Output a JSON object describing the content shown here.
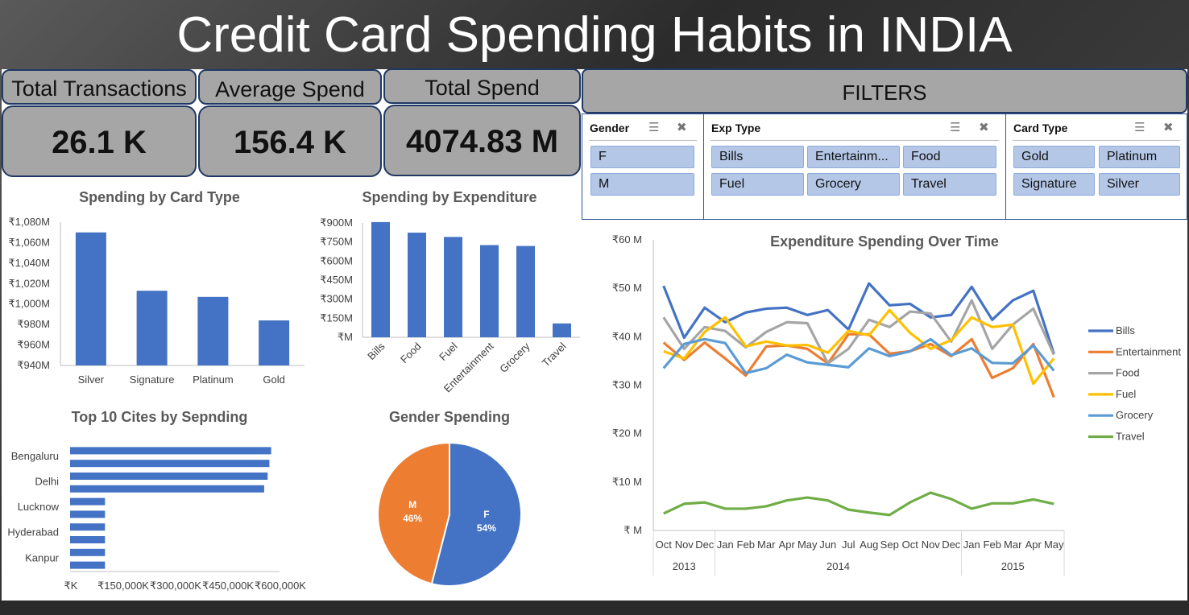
{
  "title": "Credit Card Spending Habits in INDIA",
  "kpis": [
    {
      "label": "Total Transactions",
      "value": "26.1 K"
    },
    {
      "label": "Average Spend",
      "value": "156.4 K"
    },
    {
      "label": "Total Spend",
      "value": "4074.83 M"
    }
  ],
  "filters": {
    "title": "FILTERS",
    "gender": {
      "label": "Gender",
      "options": [
        "F",
        "M"
      ]
    },
    "exp_type": {
      "label": "Exp Type",
      "options": [
        "Bills",
        "Entertainm...",
        "Food",
        "Fuel",
        "Grocery",
        "Travel"
      ]
    },
    "card_type": {
      "label": "Card Type",
      "options": [
        "Gold",
        "Platinum",
        "Signature",
        "Silver"
      ]
    }
  },
  "colors": {
    "primary": "#4472c4",
    "orange": "#ed7d31",
    "gray": "#a5a5a5",
    "yellow": "#ffc000",
    "lightblue": "#5b9bd5",
    "green": "#70ad47"
  },
  "chart_data": [
    {
      "type": "bar",
      "title": "Spending by Card Type",
      "categories": [
        "Silver",
        "Signature",
        "Platinum",
        "Gold"
      ],
      "values": [
        1070,
        1013,
        1007,
        984
      ],
      "ylim": [
        940,
        1080
      ],
      "yticks": [
        940,
        960,
        980,
        1000,
        1020,
        1040,
        1060,
        1080
      ],
      "ytick_labels": [
        "₹940M",
        "₹960M",
        "₹980M",
        "₹1,000M",
        "₹1,020M",
        "₹1,040M",
        "₹1,060M",
        "₹1,080M"
      ]
    },
    {
      "type": "bar",
      "title": "Spending by Expenditure",
      "categories": [
        "Bills",
        "Food",
        "Fuel",
        "Entertainment",
        "Grocery",
        "Travel"
      ],
      "values": [
        907,
        824,
        790,
        726,
        719,
        109
      ],
      "ylim": [
        0,
        900
      ],
      "yticks": [
        0,
        150,
        300,
        450,
        600,
        750,
        900
      ],
      "ytick_labels": [
        "₹M",
        "₹150M",
        "₹300M",
        "₹450M",
        "₹600M",
        "₹750M",
        "₹900M"
      ]
    },
    {
      "type": "bar",
      "orientation": "horizontal",
      "title": "Top 10 Cites by Sepnding",
      "categories": [
        "Bengaluru",
        "",
        "Delhi",
        "",
        "Lucknow",
        "",
        "Hyderabad",
        "",
        "Kanpur",
        ""
      ],
      "values": [
        576000,
        571000,
        566000,
        556000,
        100000,
        100000,
        100000,
        100000,
        100000,
        100000
      ],
      "xlim": [
        0,
        600000
      ],
      "xticks": [
        0,
        150000,
        300000,
        450000,
        600000
      ],
      "xtick_labels": [
        "₹K",
        "₹150,000K",
        "₹300,000K",
        "₹450,000K",
        "₹600,000K"
      ]
    },
    {
      "type": "pie",
      "title": "Gender Spending",
      "labels": [
        "F",
        "M"
      ],
      "values": [
        54,
        46
      ],
      "value_labels": [
        "54%",
        "46%"
      ]
    },
    {
      "type": "line",
      "title": "Expenditure Spending Over Time",
      "months": [
        "Oct",
        "Nov",
        "Dec",
        "Jan",
        "Feb",
        "Mar",
        "Apr",
        "May",
        "Jun",
        "Jul",
        "Aug",
        "Sep",
        "Oct",
        "Nov",
        "Dec",
        "Jan",
        "Feb",
        "Mar",
        "Apr",
        "May"
      ],
      "years": [
        {
          "label": "2013",
          "span": 3
        },
        {
          "label": "2014",
          "span": 12
        },
        {
          "label": "2015",
          "span": 5
        }
      ],
      "ylim": [
        0,
        60
      ],
      "yticks": [
        0,
        10,
        20,
        30,
        40,
        50,
        60
      ],
      "ytick_labels": [
        "₹ M",
        "₹10 M",
        "₹20 M",
        "₹30 M",
        "₹40 M",
        "₹50 M",
        "₹60 M"
      ],
      "legend": "right",
      "series": [
        {
          "name": "Bills",
          "color": "#4472c4",
          "values": [
            50.5,
            39.8,
            46,
            43,
            45,
            45.8,
            46,
            44.5,
            45.5,
            41.5,
            51,
            46.5,
            46.8,
            44,
            44.5,
            50.3,
            43.5,
            47.5,
            49.5,
            36.5
          ]
        },
        {
          "name": "Entertainment",
          "color": "#ed7d31",
          "values": [
            38.8,
            35.2,
            38.8,
            35.5,
            32,
            38,
            38.2,
            37.5,
            34.5,
            40.5,
            40.5,
            36.5,
            37,
            38.5,
            36,
            39.5,
            31.5,
            33.5,
            38.5,
            27.5
          ]
        },
        {
          "name": "Food",
          "color": "#a5a5a5",
          "values": [
            44,
            37.5,
            42,
            41.2,
            37.8,
            41,
            43,
            42.8,
            34.5,
            37.5,
            43.5,
            42,
            45.2,
            44.8,
            39,
            47.5,
            37.5,
            42.5,
            45.8,
            36.3
          ]
        },
        {
          "name": "Fuel",
          "color": "#ffc000",
          "values": [
            37,
            35.5,
            41,
            44,
            38,
            39,
            38.2,
            38.3,
            36.7,
            41.2,
            40.3,
            45.5,
            40.8,
            37.5,
            39.3,
            44,
            42,
            42.5,
            30.3,
            35.5
          ]
        },
        {
          "name": "Grocery",
          "color": "#5b9bd5",
          "values": [
            33.5,
            38.5,
            39.5,
            38.7,
            32.5,
            33.5,
            36.3,
            34.7,
            34.2,
            33.7,
            37.6,
            36,
            37,
            39.5,
            36.2,
            37.6,
            34.6,
            34.5,
            38.2,
            33
          ]
        },
        {
          "name": "Travel",
          "color": "#70ad47",
          "values": [
            3.5,
            5.5,
            5.8,
            4.5,
            4.5,
            5,
            6.2,
            6.8,
            6.2,
            4.3,
            3.7,
            3.2,
            5.8,
            7.8,
            6.5,
            4.5,
            5.6,
            5.6,
            6.4,
            5.5
          ]
        }
      ]
    }
  ]
}
